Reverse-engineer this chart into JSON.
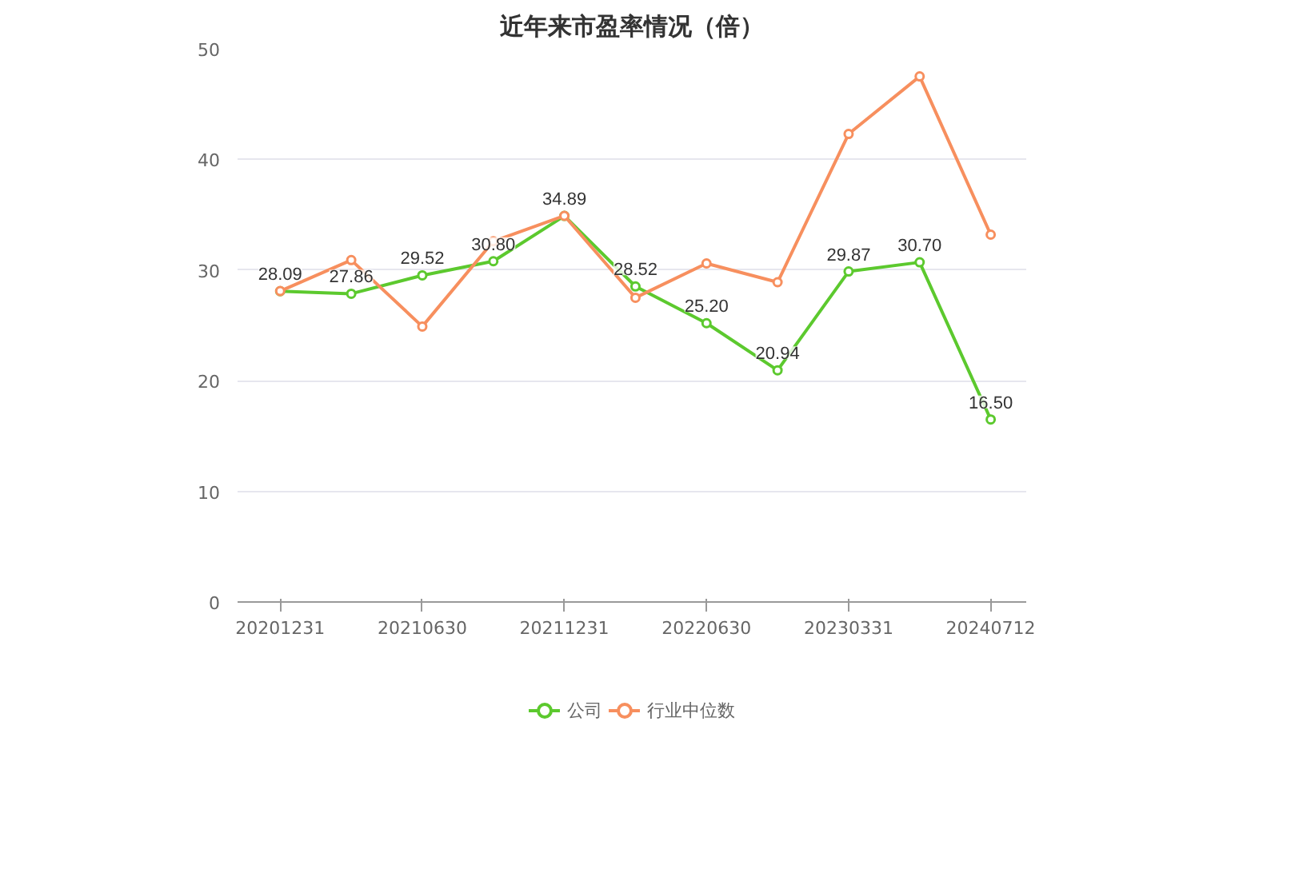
{
  "chart_data": {
    "type": "line",
    "title": "近年来市盈率情况（倍）",
    "categories": [
      "20201231",
      null,
      "20210630",
      null,
      "20211231",
      null,
      "20220630",
      null,
      "20230331",
      null,
      "20240712"
    ],
    "series": [
      {
        "name": "公司",
        "color": "#5cc92e",
        "values": [
          28.09,
          27.86,
          29.52,
          30.8,
          34.89,
          28.52,
          25.2,
          20.94,
          29.87,
          30.7,
          16.5
        ],
        "value_labels": [
          "28.09",
          "27.86",
          "29.52",
          "30.80",
          "34.89",
          "28.52",
          "25.20",
          "20.94",
          "29.87",
          "30.70",
          "16.50"
        ]
      },
      {
        "name": "行业中位数",
        "color": "#f78f5e",
        "values": [
          28.1,
          30.9,
          24.9,
          32.6,
          34.9,
          27.5,
          30.6,
          28.9,
          42.3,
          47.5,
          33.2
        ]
      }
    ],
    "ylim": [
      0,
      50
    ],
    "yticks": [
      0,
      10,
      20,
      30,
      40,
      50
    ],
    "grid": "y",
    "legend": "bottom",
    "marker": "circle",
    "line_style": "solid"
  }
}
